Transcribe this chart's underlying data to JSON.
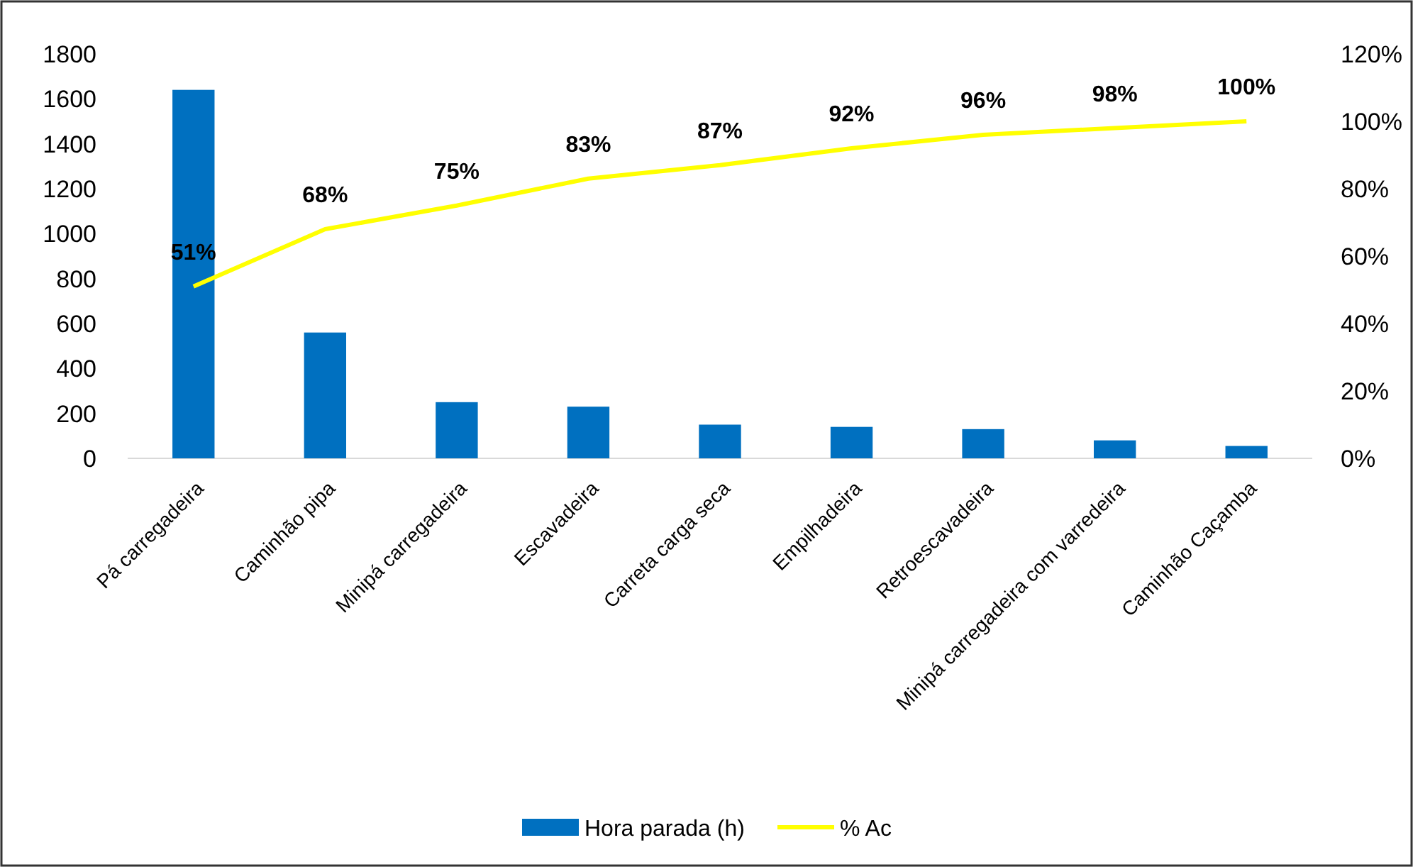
{
  "chart_data": {
    "type": "bar",
    "categories": [
      "Pá carregadeira",
      "Caminhão pipa",
      "Minipá carregadeira",
      "Escavadeira",
      "Carreta carga seca",
      "Empilhadeira",
      "Retroescavadeira",
      "Minipá carregadeira com varredeira",
      "Caminhão Caçamba"
    ],
    "series": [
      {
        "name": "Hora parada (h)",
        "color": "#0070c0",
        "values": [
          1640,
          560,
          250,
          230,
          150,
          140,
          130,
          80,
          55
        ]
      },
      {
        "name": "% Ac",
        "type": "line",
        "axis": "y2",
        "color": "#ffff00",
        "values": [
          51,
          68,
          75,
          83,
          87,
          92,
          96,
          98,
          100
        ],
        "value_labels": [
          "51%",
          "68%",
          "75%",
          "83%",
          "87%",
          "92%",
          "96%",
          "98%",
          "100%"
        ]
      }
    ],
    "ylim": [
      0,
      1800
    ],
    "yticks": [
      0,
      200,
      400,
      600,
      800,
      1000,
      1200,
      1400,
      1600,
      1800
    ],
    "y2lim": [
      0,
      120
    ],
    "y2ticks": [
      {
        "value": 0,
        "label": "0%"
      },
      {
        "value": 20,
        "label": "20%"
      },
      {
        "value": 40,
        "label": "40%"
      },
      {
        "value": 60,
        "label": "60%"
      },
      {
        "value": 80,
        "label": "80%"
      },
      {
        "value": 100,
        "label": "100%"
      },
      {
        "value": 120,
        "label": "120%"
      }
    ],
    "legend": "bottom",
    "marker": "none",
    "line_style": "solid"
  }
}
